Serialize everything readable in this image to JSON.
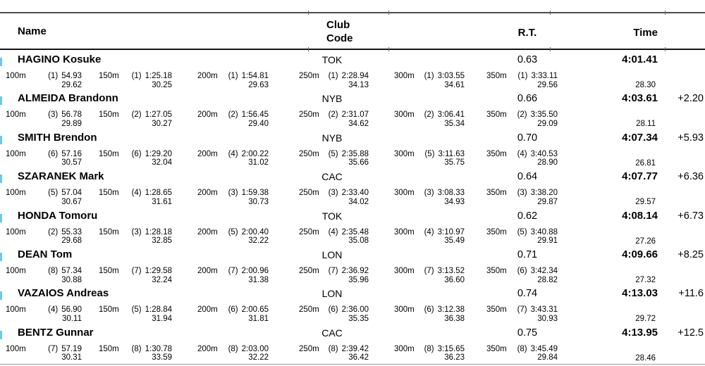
{
  "header": {
    "name": "Name",
    "club_line1": "Club",
    "club_line2": "Code",
    "rt": "R.T.",
    "time": "Time"
  },
  "colors": {
    "rank_mark": "#6bc8ee"
  },
  "rows": [
    {
      "name": "HAGINO Kosuke",
      "club": "TOK",
      "rt": "0.63",
      "time": "4:01.41",
      "gap": "",
      "final_lap": "28.30",
      "splits": [
        {
          "dist": "100m",
          "rank": "(1)",
          "cum": "54.93",
          "lap": "29.62"
        },
        {
          "dist": "150m",
          "rank": "(1)",
          "cum": "1:25.18",
          "lap": "30.25"
        },
        {
          "dist": "200m",
          "rank": "(1)",
          "cum": "1:54.81",
          "lap": "29.63"
        },
        {
          "dist": "250m",
          "rank": "(1)",
          "cum": "2:28.94",
          "lap": "34.13"
        },
        {
          "dist": "300m",
          "rank": "(1)",
          "cum": "3:03.55",
          "lap": "34.61"
        },
        {
          "dist": "350m",
          "rank": "(1)",
          "cum": "3:33.11",
          "lap": "29.56"
        }
      ]
    },
    {
      "name": "ALMEIDA Brandonn",
      "club": "NYB",
      "rt": "0.66",
      "time": "4:03.61",
      "gap": "+2.20",
      "final_lap": "28.11",
      "splits": [
        {
          "dist": "100m",
          "rank": "(3)",
          "cum": "56.78",
          "lap": "29.89"
        },
        {
          "dist": "150m",
          "rank": "(2)",
          "cum": "1:27.05",
          "lap": "30.27"
        },
        {
          "dist": "200m",
          "rank": "(2)",
          "cum": "1:56.45",
          "lap": "29.40"
        },
        {
          "dist": "250m",
          "rank": "(2)",
          "cum": "2:31.07",
          "lap": "34.62"
        },
        {
          "dist": "300m",
          "rank": "(2)",
          "cum": "3:06.41",
          "lap": "35.34"
        },
        {
          "dist": "350m",
          "rank": "(2)",
          "cum": "3:35.50",
          "lap": "29.09"
        }
      ]
    },
    {
      "name": "SMITH Brendon",
      "club": "NYB",
      "rt": "0.70",
      "time": "4:07.34",
      "gap": "+5.93",
      "final_lap": "26.81",
      "splits": [
        {
          "dist": "100m",
          "rank": "(6)",
          "cum": "57.16",
          "lap": "30.57"
        },
        {
          "dist": "150m",
          "rank": "(6)",
          "cum": "1:29.20",
          "lap": "32.04"
        },
        {
          "dist": "200m",
          "rank": "(4)",
          "cum": "2:00.22",
          "lap": "31.02"
        },
        {
          "dist": "250m",
          "rank": "(5)",
          "cum": "2:35.88",
          "lap": "35.66"
        },
        {
          "dist": "300m",
          "rank": "(5)",
          "cum": "3:11.63",
          "lap": "35.75"
        },
        {
          "dist": "350m",
          "rank": "(4)",
          "cum": "3:40.53",
          "lap": "28.90"
        }
      ]
    },
    {
      "name": "SZARANEK Mark",
      "club": "CAC",
      "rt": "0.64",
      "time": "4:07.77",
      "gap": "+6.36",
      "final_lap": "29.57",
      "splits": [
        {
          "dist": "100m",
          "rank": "(5)",
          "cum": "57.04",
          "lap": "30.67"
        },
        {
          "dist": "150m",
          "rank": "(4)",
          "cum": "1:28.65",
          "lap": "31.61"
        },
        {
          "dist": "200m",
          "rank": "(3)",
          "cum": "1:59.38",
          "lap": "30.73"
        },
        {
          "dist": "250m",
          "rank": "(3)",
          "cum": "2:33.40",
          "lap": "34.02"
        },
        {
          "dist": "300m",
          "rank": "(3)",
          "cum": "3:08.33",
          "lap": "34.93"
        },
        {
          "dist": "350m",
          "rank": "(3)",
          "cum": "3:38.20",
          "lap": "29.87"
        }
      ]
    },
    {
      "name": "HONDA Tomoru",
      "club": "TOK",
      "rt": "0.62",
      "time": "4:08.14",
      "gap": "+6.73",
      "final_lap": "27.26",
      "splits": [
        {
          "dist": "100m",
          "rank": "(2)",
          "cum": "55.33",
          "lap": "29.68"
        },
        {
          "dist": "150m",
          "rank": "(3)",
          "cum": "1:28.18",
          "lap": "32.85"
        },
        {
          "dist": "200m",
          "rank": "(5)",
          "cum": "2:00.40",
          "lap": "32.22"
        },
        {
          "dist": "250m",
          "rank": "(4)",
          "cum": "2:35.48",
          "lap": "35.08"
        },
        {
          "dist": "300m",
          "rank": "(4)",
          "cum": "3:10.97",
          "lap": "35.49"
        },
        {
          "dist": "350m",
          "rank": "(5)",
          "cum": "3:40.88",
          "lap": "29.91"
        }
      ]
    },
    {
      "name": "DEAN Tom",
      "club": "LON",
      "rt": "0.71",
      "time": "4:09.66",
      "gap": "+8.25",
      "final_lap": "27.32",
      "splits": [
        {
          "dist": "100m",
          "rank": "(8)",
          "cum": "57.34",
          "lap": "30.88"
        },
        {
          "dist": "150m",
          "rank": "(7)",
          "cum": "1:29.58",
          "lap": "32.24"
        },
        {
          "dist": "200m",
          "rank": "(7)",
          "cum": "2:00.96",
          "lap": "31.38"
        },
        {
          "dist": "250m",
          "rank": "(7)",
          "cum": "2:36.92",
          "lap": "35.96"
        },
        {
          "dist": "300m",
          "rank": "(7)",
          "cum": "3:13.52",
          "lap": "36.60"
        },
        {
          "dist": "350m",
          "rank": "(6)",
          "cum": "3:42.34",
          "lap": "28.82"
        }
      ]
    },
    {
      "name": "VAZAIOS Andreas",
      "club": "LON",
      "rt": "0.74",
      "time": "4:13.03",
      "gap": "+11.6",
      "final_lap": "29.72",
      "splits": [
        {
          "dist": "100m",
          "rank": "(4)",
          "cum": "56.90",
          "lap": "30.11"
        },
        {
          "dist": "150m",
          "rank": "(5)",
          "cum": "1:28.84",
          "lap": "31.94"
        },
        {
          "dist": "200m",
          "rank": "(6)",
          "cum": "2:00.65",
          "lap": "31.81"
        },
        {
          "dist": "250m",
          "rank": "(6)",
          "cum": "2:36.00",
          "lap": "35.35"
        },
        {
          "dist": "300m",
          "rank": "(6)",
          "cum": "3:12.38",
          "lap": "36.38"
        },
        {
          "dist": "350m",
          "rank": "(7)",
          "cum": "3:43.31",
          "lap": "30.93"
        }
      ]
    },
    {
      "name": "BENTZ Gunnar",
      "club": "CAC",
      "rt": "0.75",
      "time": "4:13.95",
      "gap": "+12.5",
      "final_lap": "28.46",
      "splits": [
        {
          "dist": "100m",
          "rank": "(7)",
          "cum": "57.19",
          "lap": "30.31"
        },
        {
          "dist": "150m",
          "rank": "(8)",
          "cum": "1:30.78",
          "lap": "33.59"
        },
        {
          "dist": "200m",
          "rank": "(8)",
          "cum": "2:03.00",
          "lap": "32.22"
        },
        {
          "dist": "250m",
          "rank": "(8)",
          "cum": "2:39.42",
          "lap": "36.42"
        },
        {
          "dist": "300m",
          "rank": "(8)",
          "cum": "3:15.65",
          "lap": "36.23"
        },
        {
          "dist": "350m",
          "rank": "(8)",
          "cum": "3:45.49",
          "lap": "29.84"
        }
      ]
    }
  ]
}
